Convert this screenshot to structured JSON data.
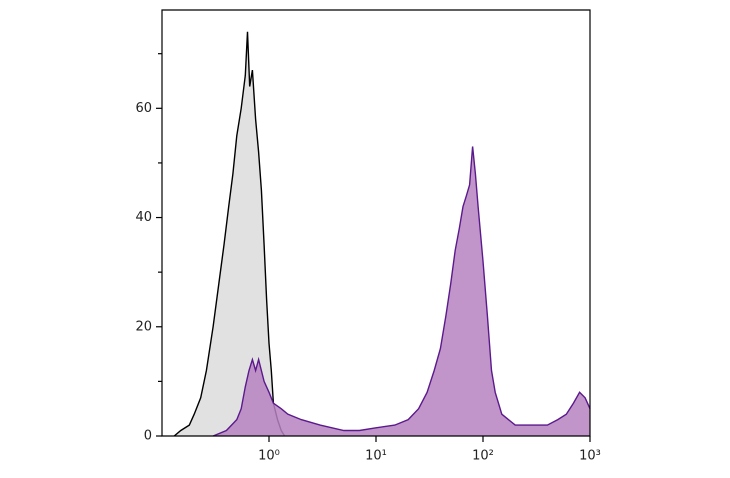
{
  "chart_data": {
    "type": "histogram-overlay",
    "xscale": "log",
    "xlim": [
      0.1,
      1000
    ],
    "ylim": [
      0,
      78
    ],
    "xticks": [
      {
        "value": 1,
        "label": "10⁰"
      },
      {
        "value": 10,
        "label": "10¹"
      },
      {
        "value": 100,
        "label": "10²"
      },
      {
        "value": 1000,
        "label": "10³"
      }
    ],
    "yticks": [
      0,
      20,
      40,
      60
    ],
    "yminorticks": [
      10,
      30,
      50,
      70
    ],
    "series": [
      {
        "fill": "#e1e1e1",
        "color": "#000000",
        "x": [
          0.13,
          0.15,
          0.18,
          0.2,
          0.23,
          0.26,
          0.3,
          0.34,
          0.38,
          0.42,
          0.46,
          0.5,
          0.55,
          0.6,
          0.63,
          0.66,
          0.7,
          0.75,
          0.8,
          0.85,
          0.9,
          0.95,
          1.0,
          1.05,
          1.1,
          1.2,
          1.3,
          1.4
        ],
        "values": [
          0,
          1,
          2,
          4,
          7,
          12,
          20,
          28,
          35,
          42,
          48,
          55,
          60,
          66,
          74,
          64,
          67,
          58,
          52,
          45,
          35,
          25,
          17,
          12,
          6,
          3,
          1,
          0
        ]
      },
      {
        "fill": "#b682c0",
        "color": "#5b1a8c",
        "x": [
          0.3,
          0.4,
          0.5,
          0.55,
          0.6,
          0.65,
          0.7,
          0.75,
          0.8,
          0.9,
          1.0,
          1.1,
          1.3,
          1.5,
          2,
          3,
          5,
          7,
          10,
          15,
          20,
          25,
          30,
          35,
          40,
          45,
          50,
          55,
          60,
          65,
          70,
          75,
          80,
          85,
          90,
          100,
          110,
          120,
          130,
          150,
          200,
          300,
          400,
          500,
          600,
          700,
          800,
          900,
          1000
        ],
        "values": [
          0,
          1,
          3,
          5,
          9,
          12,
          14,
          12,
          14,
          10,
          8,
          6,
          5,
          4,
          3,
          2,
          1,
          1,
          1.5,
          2,
          3,
          5,
          8,
          12,
          16,
          22,
          28,
          34,
          38,
          42,
          44,
          46,
          53,
          48,
          42,
          32,
          22,
          12,
          8,
          4,
          2,
          2,
          2,
          3,
          4,
          6,
          8,
          7,
          5
        ]
      }
    ]
  }
}
